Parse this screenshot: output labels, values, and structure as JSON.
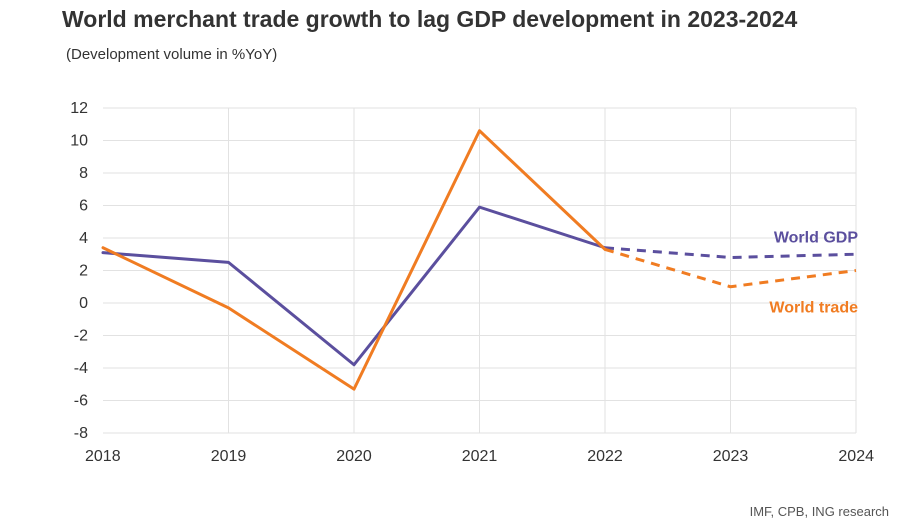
{
  "chart_data": {
    "type": "line",
    "title": "World merchant trade growth to lag GDP development in 2023-2024",
    "subtitle": "(Development volume in %YoY)",
    "source": "IMF, CPB, ING research",
    "x": [
      "2018",
      "2019",
      "2020",
      "2021",
      "2022",
      "2023",
      "2024"
    ],
    "ylim": [
      -8,
      12
    ],
    "yticks": [
      12,
      10,
      8,
      6,
      4,
      2,
      0,
      -2,
      -4,
      -6,
      -8
    ],
    "grid": true,
    "series": [
      {
        "name": "World GDP",
        "color": "#5b4f9e",
        "values": [
          3.1,
          2.5,
          -3.8,
          5.9,
          3.4,
          2.8,
          3.0
        ],
        "forecast_from_index": 4
      },
      {
        "name": "World trade",
        "color": "#f07c22",
        "values": [
          3.4,
          -0.3,
          -5.3,
          10.6,
          3.3,
          1.0,
          2.0
        ],
        "forecast_from_index": 4
      }
    ]
  }
}
